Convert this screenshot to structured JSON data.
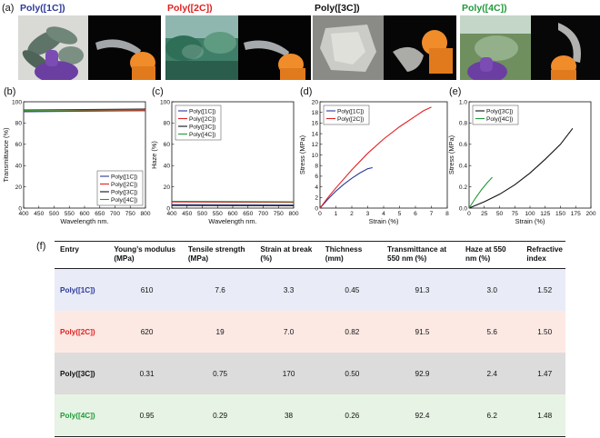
{
  "panel_a": {
    "letter": "(a)",
    "photos": [
      {
        "label": "Poly([1C])",
        "color": "#2b3a99"
      },
      {
        "label": "Poly([2C])",
        "color": "#e02020"
      },
      {
        "label": "Poly([3C])",
        "color": "#111111"
      },
      {
        "label": "Poly([4C])",
        "color": "#1f9a3a"
      }
    ]
  },
  "panel_letters": {
    "b": "(b)",
    "c": "(c)",
    "d": "(d)",
    "e": "(e)",
    "f": "(f)"
  },
  "chart_data": [
    {
      "id": "b",
      "type": "line",
      "xlabel": "Wavelength nm.",
      "ylabel": "Transmittance (%)",
      "xlim": [
        400,
        800
      ],
      "ylim": [
        0,
        100
      ],
      "xticks": [
        400,
        450,
        500,
        550,
        600,
        650,
        700,
        750,
        800
      ],
      "yticks": [
        0,
        20,
        40,
        60,
        80,
        100
      ],
      "legend_position": "bottom-right",
      "series": [
        {
          "name": "Poly([1C])",
          "color": "#2b3a99",
          "x": [
            400,
            800
          ],
          "y": [
            90.6,
            91.6
          ]
        },
        {
          "name": "Poly([2C])",
          "color": "#e02020",
          "x": [
            400,
            800
          ],
          "y": [
            90.9,
            91.8
          ]
        },
        {
          "name": "Poly([3C])",
          "color": "#111111",
          "x": [
            400,
            800
          ],
          "y": [
            92.3,
            93.1
          ]
        },
        {
          "name": "Poly([4C])",
          "color": "#1f9a3a",
          "x": [
            400,
            800
          ],
          "y": [
            92.0,
            92.6
          ]
        }
      ]
    },
    {
      "id": "c",
      "type": "line",
      "xlabel": "Wavelength nm.",
      "ylabel": "Haze (%)",
      "xlim": [
        400,
        800
      ],
      "ylim": [
        0,
        100
      ],
      "xticks": [
        400,
        450,
        500,
        550,
        600,
        650,
        700,
        750,
        800
      ],
      "yticks": [
        0,
        20,
        40,
        60,
        80,
        100
      ],
      "legend_position": "top-left",
      "series": [
        {
          "name": "Poly([1C])",
          "color": "#2b3a99",
          "x": [
            400,
            800
          ],
          "y": [
            3.2,
            2.8
          ]
        },
        {
          "name": "Poly([2C])",
          "color": "#e02020",
          "x": [
            400,
            800
          ],
          "y": [
            5.8,
            5.4
          ]
        },
        {
          "name": "Poly([3C])",
          "color": "#111111",
          "x": [
            400,
            800
          ],
          "y": [
            2.5,
            2.3
          ]
        },
        {
          "name": "Poly([4C])",
          "color": "#1f9a3a",
          "x": [
            400,
            800
          ],
          "y": [
            6.4,
            6.0
          ]
        }
      ]
    },
    {
      "id": "d",
      "type": "line",
      "xlabel": "Strain (%)",
      "ylabel": "Stress (MPa)",
      "xlim": [
        0,
        8
      ],
      "ylim": [
        0,
        20
      ],
      "xticks": [
        0,
        1,
        2,
        3,
        4,
        5,
        6,
        7,
        8
      ],
      "yticks": [
        0,
        2,
        4,
        6,
        8,
        10,
        12,
        14,
        16,
        18,
        20
      ],
      "legend_position": "top-left",
      "series": [
        {
          "name": "Poly([1C])",
          "color": "#2b3a99",
          "x": [
            0,
            0.5,
            1,
            1.5,
            2,
            2.5,
            3,
            3.3
          ],
          "y": [
            0,
            1.7,
            3.2,
            4.5,
            5.6,
            6.6,
            7.4,
            7.6
          ]
        },
        {
          "name": "Poly([2C])",
          "color": "#e02020",
          "x": [
            0,
            0.5,
            1,
            2,
            3,
            4,
            5,
            6,
            6.5,
            7.0
          ],
          "y": [
            0,
            2.0,
            3.8,
            7.2,
            10.3,
            13.0,
            15.3,
            17.3,
            18.3,
            19.0
          ]
        }
      ]
    },
    {
      "id": "e",
      "type": "line",
      "xlabel": "Strain (%)",
      "ylabel": "Stress (MPa)",
      "xlim": [
        0,
        200
      ],
      "ylim": [
        0,
        1.0
      ],
      "xticks": [
        0,
        25,
        50,
        75,
        100,
        125,
        150,
        175,
        200
      ],
      "yticks": [
        0,
        0.2,
        0.4,
        0.6,
        0.8,
        1.0
      ],
      "ytick_labels": [
        "0.0",
        "0.2",
        "0.4",
        "0.6",
        "0.8",
        "1.0"
      ],
      "legend_position": "top-left",
      "series": [
        {
          "name": "Poly([3C])",
          "color": "#111111",
          "x": [
            0,
            25,
            50,
            75,
            100,
            125,
            150,
            170
          ],
          "y": [
            0,
            0.06,
            0.13,
            0.22,
            0.33,
            0.46,
            0.6,
            0.75
          ]
        },
        {
          "name": "Poly([4C])",
          "color": "#1f9a3a",
          "x": [
            0,
            10,
            20,
            30,
            38
          ],
          "y": [
            0,
            0.09,
            0.17,
            0.24,
            0.29
          ]
        }
      ]
    }
  ],
  "table": {
    "headers": [
      "Entry",
      "Young’s modulus (MPa)",
      "Tensile strength (MPa)",
      "Strain at break (%)",
      "Thichness (mm)",
      "Transmittance at 550 nm (%)",
      "Haze at 550 nm (%)",
      "Refractive index"
    ],
    "rows": [
      {
        "entry": "Poly([1C])",
        "color": "#2b3a99",
        "bg": "#e9ebf6",
        "cells": [
          "610",
          "7.6",
          "3.3",
          "0.45",
          "91.3",
          "3.0",
          "1.52"
        ]
      },
      {
        "entry": "Poly([2C])",
        "color": "#e02020",
        "bg": "#fde9e4",
        "cells": [
          "620",
          "19",
          "7.0",
          "0.82",
          "91.5",
          "5.6",
          "1.50"
        ]
      },
      {
        "entry": "Poly([3C])",
        "color": "#111111",
        "bg": "#dcdcdc",
        "cells": [
          "0.31",
          "0.75",
          "170",
          "0.50",
          "92.9",
          "2.4",
          "1.47"
        ]
      },
      {
        "entry": "Poly([4C])",
        "color": "#1f9a3a",
        "bg": "#e7f3e4",
        "cells": [
          "0.95",
          "0.29",
          "38",
          "0.26",
          "92.4",
          "6.2",
          "1.48"
        ]
      }
    ]
  }
}
